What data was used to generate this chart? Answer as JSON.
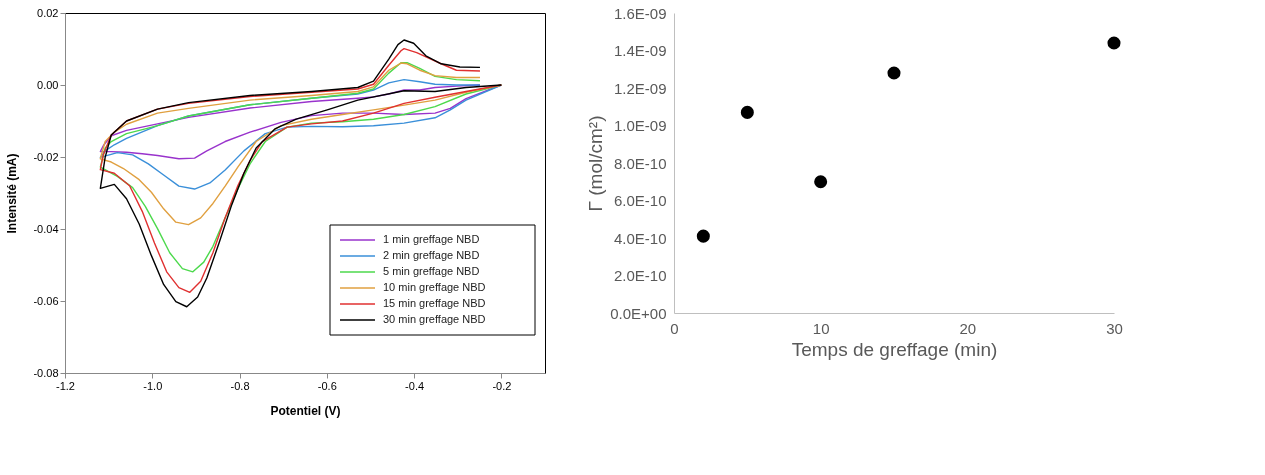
{
  "chart_data": [
    {
      "type": "line",
      "xlabel": "Potentiel (V)",
      "ylabel": "Intensité (mA)",
      "legend": "bottom right",
      "grid": false,
      "xlim": [
        -1.2,
        -0.1
      ],
      "xticks": [
        -1.2,
        {
          "value": -1.0,
          "label": "-1.0"
        },
        -0.8,
        -0.6,
        -0.4,
        -0.2
      ],
      "ylim": [
        -0.08,
        0.02
      ],
      "yticks": [
        -0.08,
        -0.06,
        -0.04,
        -0.02,
        {
          "value": 0,
          "label": "0.00"
        },
        0.02
      ],
      "series": [
        {
          "name": "1 min greffage NBD",
          "color": "#9933cc",
          "x": [
            -0.2,
            -0.281,
            -0.317,
            -0.352,
            -0.423,
            -0.493,
            -0.564,
            -0.635,
            -0.705,
            -0.776,
            -0.833,
            -0.875,
            -0.903,
            -0.939,
            -0.988,
            -1.023,
            -1.059,
            -1.094,
            -1.119,
            -1.112,
            -1.094,
            -1.059,
            -0.988,
            -0.917,
            -0.776,
            -0.635,
            -0.529,
            -0.493,
            -0.458,
            -0.423,
            -0.387,
            -0.352,
            -0.303,
            -0.249
          ],
          "values": [
            0,
            -0.0038,
            -0.0065,
            -0.0078,
            -0.0082,
            -0.0078,
            -0.0078,
            -0.0085,
            -0.0104,
            -0.0131,
            -0.0157,
            -0.0183,
            -0.0203,
            -0.0205,
            -0.0196,
            -0.0191,
            -0.0187,
            -0.0185,
            -0.0185,
            -0.0168,
            -0.0141,
            -0.0126,
            -0.0108,
            -0.009,
            -0.0064,
            -0.0046,
            -0.0037,
            -0.0033,
            -0.0025,
            -0.0014,
            -0.0014,
            -0.0007,
            -0.0003,
            0
          ]
        },
        {
          "name": "2 min greffage NBD",
          "color": "#3a8fd9",
          "x": [
            -0.2,
            -0.281,
            -0.317,
            -0.352,
            -0.423,
            -0.493,
            -0.564,
            -0.635,
            -0.691,
            -0.741,
            -0.79,
            -0.833,
            -0.868,
            -0.903,
            -0.939,
            -0.974,
            -1.009,
            -1.045,
            -1.08,
            -1.119,
            -1.108,
            -1.087,
            -1.059,
            -0.988,
            -0.917,
            -0.776,
            -0.635,
            -0.529,
            -0.493,
            -0.458,
            -0.423,
            -0.387,
            -0.352,
            -0.303,
            -0.249
          ],
          "values": [
            0,
            -0.0042,
            -0.0069,
            -0.0091,
            -0.0106,
            -0.0113,
            -0.0116,
            -0.0115,
            -0.0117,
            -0.0135,
            -0.0183,
            -0.0236,
            -0.0272,
            -0.0289,
            -0.0281,
            -0.025,
            -0.0219,
            -0.0194,
            -0.0188,
            -0.0201,
            -0.0183,
            -0.0166,
            -0.0148,
            -0.0113,
            -0.0086,
            -0.0055,
            -0.0037,
            -0.0025,
            -0.0014,
            0.0006,
            0.0015,
            0.0009,
            0.0002,
            0,
            0
          ]
        },
        {
          "name": "5 min greffage NBD",
          "color": "#4cd94c",
          "x": [
            -0.2,
            -0.281,
            -0.352,
            -0.423,
            -0.493,
            -0.564,
            -0.635,
            -0.691,
            -0.741,
            -0.776,
            -0.804,
            -0.833,
            -0.861,
            -0.882,
            -0.907,
            -0.931,
            -0.96,
            -0.988,
            -1.016,
            -1.045,
            -1.08,
            -1.119,
            -1.108,
            -1.094,
            -1.059,
            -1.016,
            -0.988,
            -0.917,
            -0.776,
            -0.635,
            -0.529,
            -0.493,
            -0.458,
            -0.43,
            -0.416,
            -0.387,
            -0.352,
            -0.303,
            -0.249
          ],
          "values": [
            0,
            -0.0025,
            -0.006,
            -0.0082,
            -0.0095,
            -0.0102,
            -0.0106,
            -0.0117,
            -0.0157,
            -0.0219,
            -0.0289,
            -0.0369,
            -0.0448,
            -0.0492,
            -0.0519,
            -0.051,
            -0.0466,
            -0.0399,
            -0.0337,
            -0.0285,
            -0.0254,
            -0.0228,
            -0.0175,
            -0.0157,
            -0.0135,
            -0.0122,
            -0.0113,
            -0.0086,
            -0.0055,
            -0.0037,
            -0.0023,
            -0.0011,
            0.0033,
            0.0062,
            0.0062,
            0.0046,
            0.0024,
            0.0015,
            0.0012
          ]
        },
        {
          "name": "10 min greffage NBD",
          "color": "#e0a040",
          "x": [
            -0.2,
            -0.281,
            -0.352,
            -0.423,
            -0.493,
            -0.564,
            -0.635,
            -0.705,
            -0.762,
            -0.804,
            -0.833,
            -0.861,
            -0.889,
            -0.917,
            -0.946,
            -0.974,
            -1.002,
            -1.03,
            -1.066,
            -1.094,
            -1.119,
            -1.108,
            -1.087,
            -1.059,
            -0.988,
            -0.917,
            -0.776,
            -0.635,
            -0.529,
            -0.493,
            -0.458,
            -0.43,
            -0.416,
            -0.387,
            -0.352,
            -0.303,
            -0.249
          ],
          "values": [
            0,
            -0.002,
            -0.0042,
            -0.0056,
            -0.0069,
            -0.0082,
            -0.0095,
            -0.0113,
            -0.0157,
            -0.0228,
            -0.0281,
            -0.0329,
            -0.0369,
            -0.0388,
            -0.0381,
            -0.0344,
            -0.0298,
            -0.0263,
            -0.0232,
            -0.0214,
            -0.0205,
            -0.0157,
            -0.0131,
            -0.0109,
            -0.0078,
            -0.0065,
            -0.0042,
            -0.0029,
            -0.0018,
            -0.0005,
            0.0041,
            0.0061,
            0.0059,
            0.0041,
            0.0026,
            0.0021,
            0.0021
          ]
        },
        {
          "name": "15 min greffage NBD",
          "color": "#e03030",
          "x": [
            -0.2,
            -0.281,
            -0.352,
            -0.423,
            -0.493,
            -0.564,
            -0.635,
            -0.691,
            -0.748,
            -0.776,
            -0.804,
            -0.833,
            -0.861,
            -0.889,
            -0.914,
            -0.939,
            -0.967,
            -0.995,
            -1.023,
            -1.052,
            -1.087,
            -1.119,
            -1.112,
            -1.094,
            -1.059,
            -0.988,
            -0.917,
            -0.776,
            -0.635,
            -0.529,
            -0.493,
            -0.458,
            -0.43,
            -0.423,
            -0.394,
            -0.338,
            -0.303,
            -0.249
          ],
          "values": [
            0,
            -0.0018,
            -0.0034,
            -0.0051,
            -0.0078,
            -0.01,
            -0.0108,
            -0.0117,
            -0.0157,
            -0.021,
            -0.028,
            -0.0369,
            -0.0466,
            -0.0545,
            -0.0576,
            -0.0563,
            -0.0519,
            -0.0439,
            -0.0351,
            -0.028,
            -0.0245,
            -0.0235,
            -0.0193,
            -0.0139,
            -0.01,
            -0.0067,
            -0.0051,
            -0.0032,
            -0.002,
            -0.0011,
            0.0002,
            0.0055,
            0.0095,
            0.0101,
            0.009,
            0.0059,
            0.0041,
            0.0039
          ]
        },
        {
          "name": "30 min greffage NBD",
          "color": "#000000",
          "x": [
            -0.2,
            -0.281,
            -0.352,
            -0.423,
            -0.529,
            -0.599,
            -0.67,
            -0.719,
            -0.762,
            -0.79,
            -0.818,
            -0.847,
            -0.875,
            -0.896,
            -0.921,
            -0.946,
            -0.974,
            -1.002,
            -1.03,
            -1.059,
            -1.087,
            -1.119,
            -1.108,
            -1.094,
            -1.059,
            -0.988,
            -0.917,
            -0.776,
            -0.635,
            -0.529,
            -0.493,
            -0.458,
            -0.437,
            -0.423,
            -0.401,
            -0.373,
            -0.338,
            -0.295,
            -0.249
          ],
          "values": [
            0,
            -0.0007,
            -0.0018,
            -0.0016,
            -0.0042,
            -0.0069,
            -0.0095,
            -0.0122,
            -0.0175,
            -0.0245,
            -0.0333,
            -0.0439,
            -0.0536,
            -0.0589,
            -0.0616,
            -0.0602,
            -0.0554,
            -0.0474,
            -0.0386,
            -0.0316,
            -0.0276,
            -0.0287,
            -0.0201,
            -0.0139,
            -0.01,
            -0.0067,
            -0.0049,
            -0.0029,
            -0.0018,
            -0.0007,
            0.0011,
            0.0072,
            0.0112,
            0.0125,
            0.0116,
            0.0081,
            0.0059,
            0.005,
            0.0049
          ]
        }
      ]
    },
    {
      "type": "scatter",
      "xlabel": "Temps de greffage (min)",
      "ylabel": "Γ (mol/cm²)",
      "grid": false,
      "legend": false,
      "marker": "circle",
      "x": [
        2,
        5,
        10,
        15,
        30
      ],
      "values": [
        4.1e-10,
        1.07e-09,
        7e-10,
        1.28e-09,
        1.44e-09
      ],
      "color": "#000000",
      "xlim": [
        0,
        30
      ],
      "xticks": [
        0,
        10,
        20,
        30
      ],
      "ylim": [
        0,
        1.6e-09
      ],
      "yticks": [
        {
          "value": 0,
          "label": "0.0E+00"
        },
        {
          "value": 2e-10,
          "label": "2.0E-10"
        },
        {
          "value": 4e-10,
          "label": "4.0E-10"
        },
        {
          "value": 6e-10,
          "label": "6.0E-10"
        },
        {
          "value": 8e-10,
          "label": "8.0E-10"
        },
        {
          "value": 1e-09,
          "label": "1.0E-09"
        },
        {
          "value": 1.2e-09,
          "label": "1.2E-09"
        },
        {
          "value": 1.4e-09,
          "label": "1.4E-09"
        },
        {
          "value": 1.6e-09,
          "label": "1.6E-09"
        }
      ]
    }
  ]
}
